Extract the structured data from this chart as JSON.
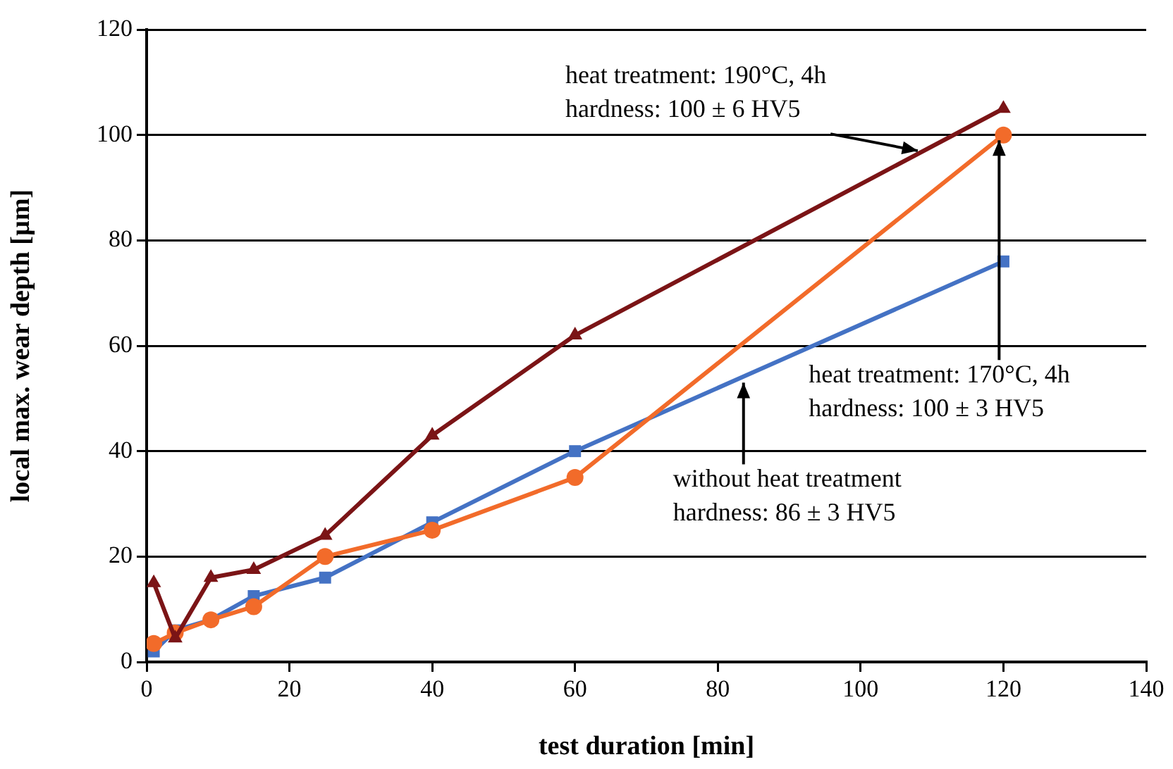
{
  "chart_data": {
    "type": "line",
    "xlabel": "test duration [min]",
    "ylabel": "local max. wear depth [µm]",
    "x": [
      1,
      4,
      9,
      15,
      25,
      40,
      60,
      120
    ],
    "series": [
      {
        "color": "#7b1416",
        "marker": "triangle",
        "values": [
          15,
          4.5,
          16,
          17.5,
          24,
          43,
          62,
          105
        ]
      },
      {
        "color": "#f26b2a",
        "marker": "circle",
        "values": [
          3.5,
          5.5,
          8,
          10.5,
          20,
          25,
          35,
          100
        ]
      },
      {
        "color": "#4472c4",
        "marker": "square",
        "values": [
          2,
          6,
          8,
          12.5,
          16,
          26.5,
          40,
          76
        ]
      }
    ],
    "xlim": [
      0,
      140
    ],
    "xticks": [
      0,
      20,
      40,
      60,
      80,
      100,
      120,
      140
    ],
    "ylim": [
      0,
      120
    ],
    "yticks": [
      0,
      20,
      40,
      60,
      80,
      100,
      120
    ],
    "grid": "y",
    "legend": false,
    "line_style": "solid",
    "annotations": [
      {
        "text": "heat treatment: 190°C, 4h\nhardness: 100 ± 6 HV5",
        "x": 108,
        "y": 97
      },
      {
        "text": "heat treatment: 170°C, 4h\nhardness: 100 ± 3 HV5",
        "x": 119.4,
        "y": 99
      },
      {
        "text": "without heat treatment\nhardness: 86 ± 3 HV5",
        "x": 83.6,
        "y": 53
      }
    ]
  }
}
